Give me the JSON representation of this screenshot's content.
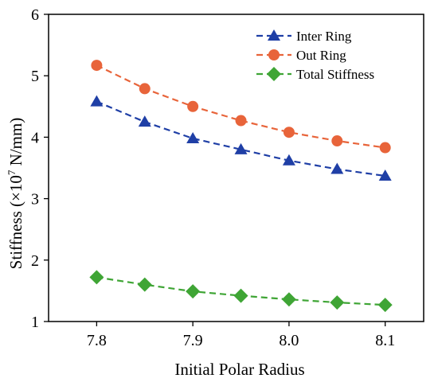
{
  "chart_data": {
    "type": "line",
    "title": "",
    "xlabel": "Initial Polar Radius",
    "ylabel_prefix": "Stiffness (×10",
    "ylabel_exp": "7",
    "ylabel_suffix": " N/mm)",
    "xlim": [
      7.75,
      8.14
    ],
    "ylim": [
      1,
      6
    ],
    "xticks": [
      7.8,
      7.9,
      8.0,
      8.1
    ],
    "xtick_labels": [
      "7.8",
      "7.9",
      "8.0",
      "8.1"
    ],
    "yticks": [
      1,
      2,
      3,
      4,
      5,
      6
    ],
    "ytick_labels": [
      "1",
      "2",
      "3",
      "4",
      "5",
      "6"
    ],
    "grid": false,
    "legend_position": "top-right",
    "x": [
      7.8,
      7.85,
      7.9,
      7.95,
      8.0,
      8.05,
      8.1
    ],
    "series": [
      {
        "name": "Inter Ring",
        "marker": "triangle",
        "color": "#1f3fa6",
        "values": [
          4.58,
          4.25,
          3.98,
          3.8,
          3.62,
          3.48,
          3.37
        ]
      },
      {
        "name": "Out Ring",
        "marker": "circle",
        "color": "#e8643a",
        "values": [
          5.17,
          4.79,
          4.5,
          4.27,
          4.08,
          3.94,
          3.83
        ]
      },
      {
        "name": "Total Stiffness",
        "marker": "diamond",
        "color": "#3fa535",
        "values": [
          1.72,
          1.6,
          1.49,
          1.42,
          1.36,
          1.31,
          1.27
        ]
      }
    ]
  }
}
